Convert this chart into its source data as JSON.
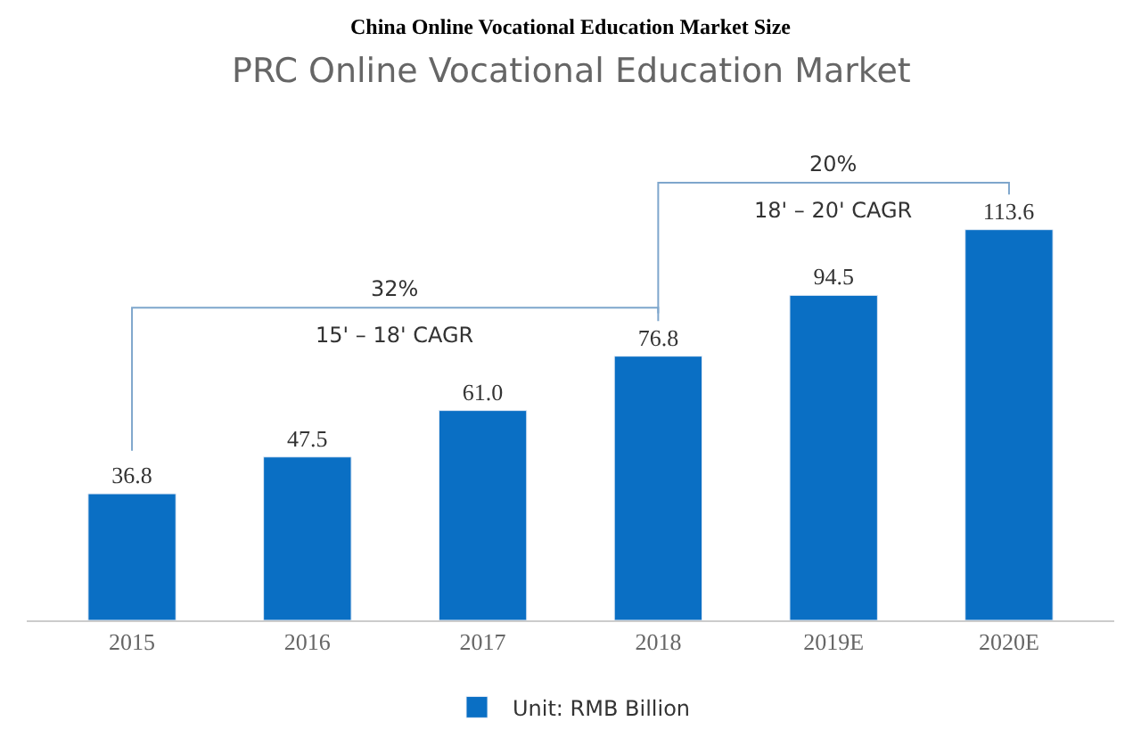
{
  "chart_data": {
    "type": "bar",
    "title": "China Online Vocational Education Market Size",
    "subtitle": "PRC Online Vocational Education Market",
    "categories": [
      "2015",
      "2016",
      "2017",
      "2018",
      "2019E",
      "2020E"
    ],
    "series": [
      {
        "name": "Unit: RMB Billion",
        "color": "#0a6fc4",
        "values": [
          36.8,
          47.5,
          61.0,
          76.8,
          94.5,
          113.6
        ],
        "value_labels": [
          "36.8",
          "47.5",
          "61.0",
          "76.8",
          "94.5",
          "113.6"
        ]
      }
    ],
    "annotations": [
      "32%",
      "15' – 18' CAGR",
      "20%",
      "18' – 20' CAGR"
    ],
    "legend": "bottom"
  }
}
